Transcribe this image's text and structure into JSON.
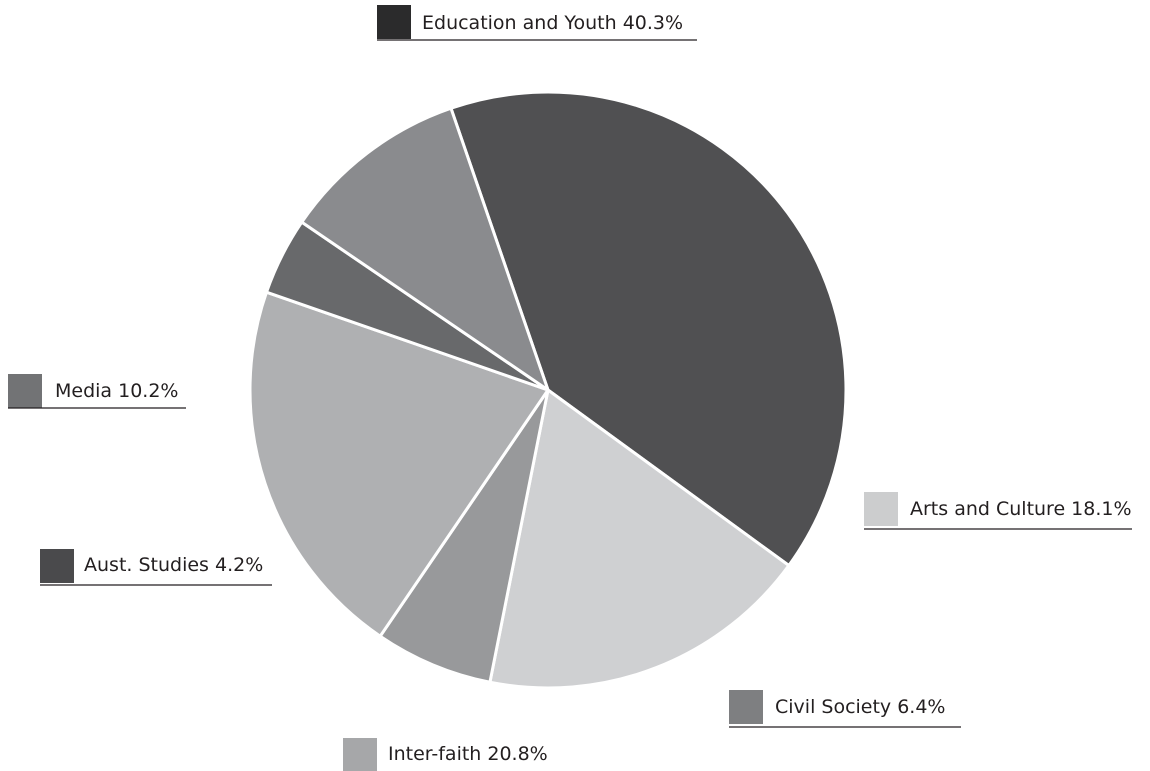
{
  "chart_data": {
    "type": "pie",
    "title": "",
    "start_angle_deg": 109,
    "direction": "clockwise",
    "slices": [
      {
        "label": "Education and Youth",
        "value": 40.3,
        "display": "Education and Youth 40.3%",
        "color": "#505052",
        "legend_color": "#2b2b2c"
      },
      {
        "label": "Arts and Culture",
        "value": 18.1,
        "display": "Arts and Culture 18.1%",
        "color": "#cfd0d2",
        "legend_color": "#cccdce"
      },
      {
        "label": "Civil Society",
        "value": 6.4,
        "display": "Civil Society 6.4%",
        "color": "#98999b",
        "legend_color": "#7e7f81"
      },
      {
        "label": "Inter-faith",
        "value": 20.8,
        "display": "Inter-faith 20.8%",
        "color": "#afb0b2",
        "legend_color": "#a6a7a9"
      },
      {
        "label": "Aust. Studies",
        "value": 4.2,
        "display": "Aust. Studies 4.2%",
        "color": "#68696b",
        "legend_color": "#4a4a4c"
      },
      {
        "label": "Media",
        "value": 10.2,
        "display": "Media 10.2%",
        "color": "#8a8b8e",
        "legend_color": "#727375"
      }
    ]
  }
}
